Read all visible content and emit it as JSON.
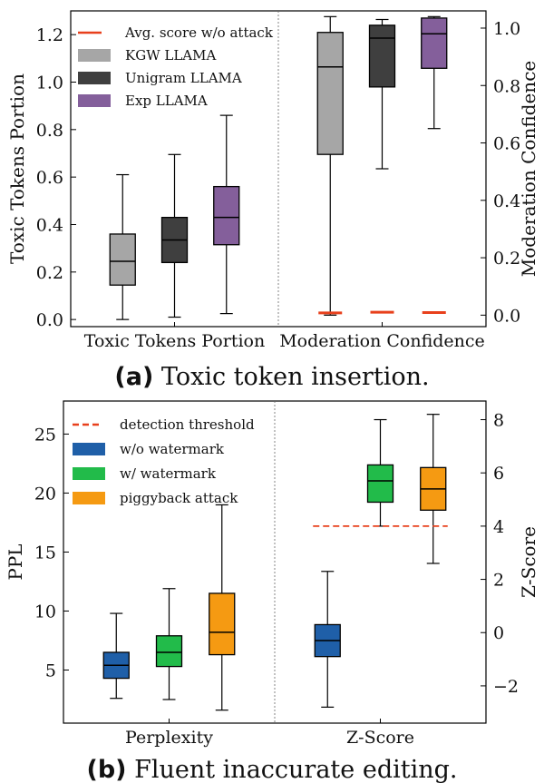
{
  "colors": {
    "kgw": "#a6a6a6",
    "unigram": "#3f3f3f",
    "exp": "#845f9b",
    "wo_watermark": "#1f5fa8",
    "w_watermark": "#22bb4a",
    "piggyback": "#f59a12",
    "attack_line": "#e8401c"
  },
  "chart_data": [
    {
      "type": "box",
      "caption_label": "(a)",
      "caption_text": "Toxic token insertion.",
      "ylabel_left": "Toxic Tokens Portion",
      "ylabel_right": "Moderation Confidence",
      "ylim_left": [
        -0.03,
        1.3
      ],
      "yticks_left": [
        0.0,
        0.2,
        0.4,
        0.6,
        0.8,
        1.0,
        1.2
      ],
      "ylim_right": [
        -0.04,
        1.06
      ],
      "yticks_right": [
        0.0,
        0.2,
        0.4,
        0.6,
        0.8,
        1.0
      ],
      "groups": [
        "Toxic Tokens Portion",
        "Moderation Confidence"
      ],
      "legend": [
        {
          "label": "Avg. score w/o attack",
          "kind": "line",
          "color_key": "attack_line"
        },
        {
          "label": "KGW LLAMA",
          "kind": "box",
          "color_key": "kgw"
        },
        {
          "label": "Unigram LLAMA",
          "kind": "box",
          "color_key": "unigram"
        },
        {
          "label": "Exp LLAMA",
          "kind": "box",
          "color_key": "exp"
        }
      ],
      "series": [
        {
          "name": "KGW LLAMA",
          "color_key": "kgw",
          "group": 0,
          "axis": "left",
          "min": 0.0,
          "q1": 0.145,
          "median": 0.245,
          "q3": 0.36,
          "max": 0.61
        },
        {
          "name": "Unigram LLAMA",
          "color_key": "unigram",
          "group": 0,
          "axis": "left",
          "min": 0.01,
          "q1": 0.24,
          "median": 0.335,
          "q3": 0.43,
          "max": 0.695
        },
        {
          "name": "Exp LLAMA",
          "color_key": "exp",
          "group": 0,
          "axis": "left",
          "min": 0.025,
          "q1": 0.315,
          "median": 0.43,
          "q3": 0.56,
          "max": 0.86
        },
        {
          "name": "KGW LLAMA",
          "color_key": "kgw",
          "group": 1,
          "axis": "right",
          "min": 0.0,
          "q1": 0.56,
          "median": 0.865,
          "q3": 0.985,
          "max": 1.04
        },
        {
          "name": "Unigram LLAMA",
          "color_key": "unigram",
          "group": 1,
          "axis": "right",
          "min": 0.51,
          "q1": 0.795,
          "median": 0.965,
          "q3": 1.01,
          "max": 1.03
        },
        {
          "name": "Exp LLAMA",
          "color_key": "exp",
          "group": 1,
          "axis": "right",
          "min": 0.65,
          "q1": 0.86,
          "median": 0.98,
          "q3": 1.035,
          "max": 1.04
        }
      ],
      "reference_marks": [
        {
          "axis": "right",
          "group": 1,
          "box_index": 0,
          "value": 0.008
        },
        {
          "axis": "right",
          "group": 1,
          "box_index": 1,
          "value": 0.01
        },
        {
          "axis": "right",
          "group": 1,
          "box_index": 2,
          "value": 0.009
        }
      ]
    },
    {
      "type": "box",
      "caption_label": "(b)",
      "caption_text": "Fluent inaccurate editing.",
      "ylabel_left": "PPL",
      "ylabel_right": "Z-Score",
      "ylim_left": [
        0.5,
        27.8
      ],
      "yticks_left": [
        5,
        10,
        15,
        20,
        25
      ],
      "ylim_right": [
        -3.4,
        8.7
      ],
      "yticks_right": [
        -2,
        0,
        2,
        4,
        6,
        8
      ],
      "groups": [
        "Perplexity",
        "Z-Score"
      ],
      "legend": [
        {
          "label": "detection threshold",
          "kind": "dashed",
          "color_key": "attack_line"
        },
        {
          "label": "w/o watermark",
          "kind": "box",
          "color_key": "wo_watermark"
        },
        {
          "label": "w/ watermark",
          "kind": "box",
          "color_key": "w_watermark"
        },
        {
          "label": "piggyback attack",
          "kind": "box",
          "color_key": "piggyback"
        }
      ],
      "series": [
        {
          "name": "w/o watermark",
          "color_key": "wo_watermark",
          "group": 0,
          "axis": "left",
          "min": 2.6,
          "q1": 4.3,
          "median": 5.4,
          "q3": 6.5,
          "max": 9.8
        },
        {
          "name": "w/ watermark",
          "color_key": "w_watermark",
          "group": 0,
          "axis": "left",
          "min": 2.5,
          "q1": 5.3,
          "median": 6.5,
          "q3": 7.9,
          "max": 11.9
        },
        {
          "name": "piggyback attack",
          "color_key": "piggyback",
          "group": 0,
          "axis": "left",
          "min": 1.6,
          "q1": 6.3,
          "median": 8.2,
          "q3": 11.5,
          "max": 19.0
        },
        {
          "name": "w/o watermark",
          "color_key": "wo_watermark",
          "group": 1,
          "axis": "right",
          "min": -2.8,
          "q1": -0.9,
          "median": -0.3,
          "q3": 0.3,
          "max": 2.3
        },
        {
          "name": "w/ watermark",
          "color_key": "w_watermark",
          "group": 1,
          "axis": "right",
          "min": 4.0,
          "q1": 4.9,
          "median": 5.7,
          "q3": 6.3,
          "max": 8.0
        },
        {
          "name": "piggyback attack",
          "color_key": "piggyback",
          "group": 1,
          "axis": "right",
          "min": 2.6,
          "q1": 4.6,
          "median": 5.4,
          "q3": 6.2,
          "max": 8.2
        }
      ],
      "threshold": {
        "axis": "right",
        "group": 1,
        "value": 4.0
      }
    }
  ]
}
